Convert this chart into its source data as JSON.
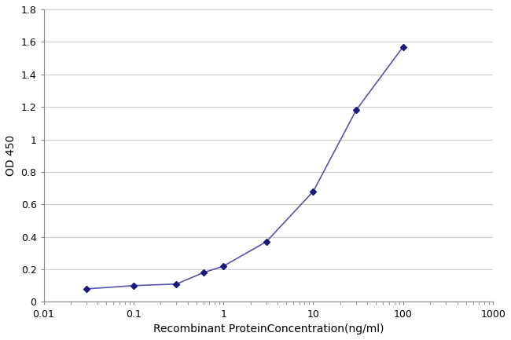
{
  "x": [
    0.03,
    0.1,
    0.3,
    0.6,
    1.0,
    3.0,
    10.0,
    30.0,
    100.0
  ],
  "y": [
    0.08,
    0.1,
    0.11,
    0.18,
    0.22,
    0.37,
    0.68,
    1.18,
    1.57
  ],
  "line_color": "#5555aa",
  "marker_color": "#1a1a7a",
  "marker_size": 4,
  "line_width": 1.2,
  "xlabel": "Recombinant ProteinConcentration(ng/ml)",
  "ylabel": "OD 450",
  "xlim": [
    0.01,
    1000
  ],
  "ylim": [
    0,
    1.8
  ],
  "yticks": [
    0,
    0.2,
    0.4,
    0.6,
    0.8,
    1.0,
    1.2,
    1.4,
    1.6,
    1.8
  ],
  "figure_bg": "#ffffff",
  "plot_bg": "#ffffff",
  "grid_color": "#cccccc",
  "xlabel_fontsize": 10,
  "ylabel_fontsize": 10,
  "tick_fontsize": 9,
  "fig_width": 6.5,
  "fig_height": 4.33,
  "dpi": 100
}
